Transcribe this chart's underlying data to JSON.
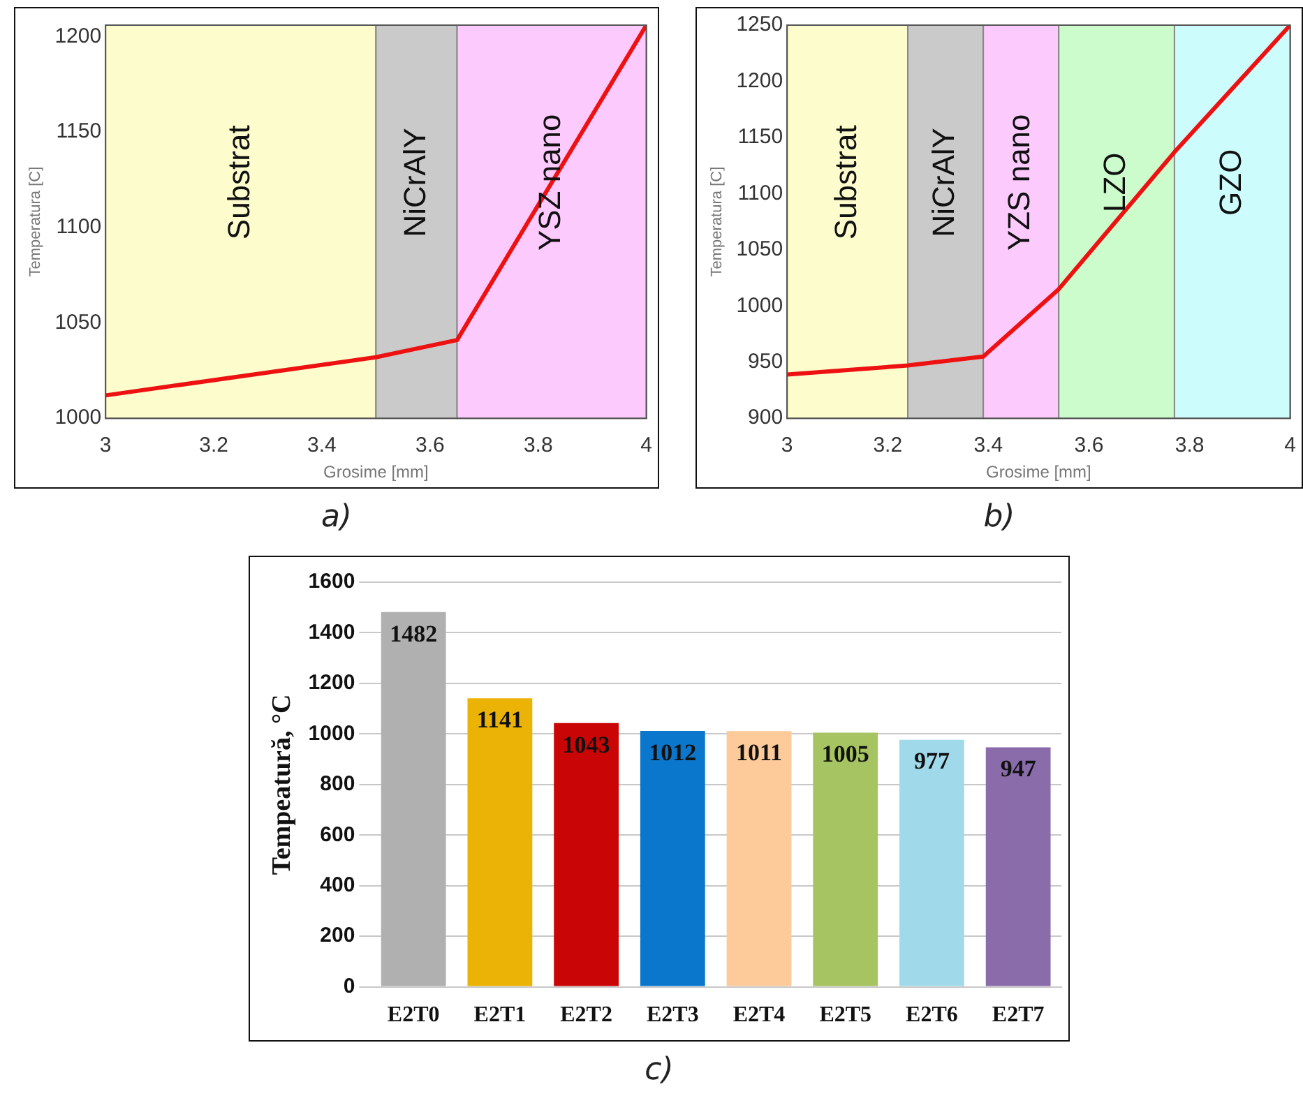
{
  "chart_data": [
    {
      "type": "line",
      "xlabel": "Grosime [mm]",
      "ylabel": "Temperatura [C]",
      "x": [
        3,
        3.5,
        3.65,
        4
      ],
      "values": [
        1012,
        1032,
        1041,
        1206
      ],
      "color": "#ee1111",
      "xlim": [
        3,
        4
      ],
      "xticks": [
        3,
        3.2,
        3.4,
        3.6,
        3.8,
        4
      ],
      "ylim": [
        1000,
        1206
      ],
      "yticks": [
        1000,
        1050,
        1100,
        1150,
        1200
      ],
      "grid": false,
      "legend": false,
      "bands": [
        {
          "axis": "x",
          "from": 3,
          "to": 3.5,
          "label": "Substrat",
          "color": "#fdfccc"
        },
        {
          "axis": "x",
          "from": 3.5,
          "to": 3.65,
          "label": "NiCrAlY",
          "color": "#cacaca"
        },
        {
          "axis": "x",
          "from": 3.65,
          "to": 4,
          "label": "YSZ nano",
          "color": "#fdcafd"
        }
      ],
      "annotations": [
        "a)"
      ]
    },
    {
      "type": "line",
      "xlabel": "Grosime [mm]",
      "ylabel": "Temperatura [C]",
      "x": [
        3,
        3.24,
        3.39,
        3.54,
        3.77,
        4
      ],
      "values": [
        939,
        947,
        955,
        1015,
        1137,
        1250
      ],
      "color": "#ee1111",
      "xlim": [
        3,
        4
      ],
      "xticks": [
        3,
        3.2,
        3.4,
        3.6,
        3.8,
        4
      ],
      "ylim": [
        900,
        1250
      ],
      "yticks": [
        900,
        950,
        1000,
        1050,
        1100,
        1150,
        1200,
        1250
      ],
      "grid": false,
      "legend": false,
      "bands": [
        {
          "axis": "x",
          "from": 3,
          "to": 3.24,
          "label": "Substrat",
          "color": "#fdfccc"
        },
        {
          "axis": "x",
          "from": 3.24,
          "to": 3.39,
          "label": "NiCrAlY",
          "color": "#cacaca"
        },
        {
          "axis": "x",
          "from": 3.39,
          "to": 3.54,
          "label": "YZS nano",
          "color": "#fdcafd"
        },
        {
          "axis": "x",
          "from": 3.54,
          "to": 3.77,
          "label": "LZO",
          "color": "#ccfccc"
        },
        {
          "axis": "x",
          "from": 3.77,
          "to": 4,
          "label": "GZO",
          "color": "#ccfcfc"
        }
      ],
      "annotations": [
        "b)"
      ]
    },
    {
      "type": "bar",
      "ylabel": "Tempeatură, °C",
      "categories": [
        "E2T0",
        "E2T1",
        "E2T2",
        "E2T3",
        "E2T4",
        "E2T5",
        "E2T6",
        "E2T7"
      ],
      "values": [
        1482,
        1141,
        1043,
        1012,
        1011,
        1005,
        977,
        947
      ],
      "colors": [
        "#b0b0b0",
        "#ebb305",
        "#c90505",
        "#0a77cc",
        "#fdca9a",
        "#a6c461",
        "#a0d9ea",
        "#8a6cab"
      ],
      "ylim": [
        0,
        1600
      ],
      "yticks": [
        0,
        200,
        400,
        600,
        800,
        1000,
        1200,
        1400,
        1600
      ],
      "grid": "y",
      "legend": false,
      "data_labels": true,
      "annotations": [
        "c)"
      ]
    }
  ]
}
